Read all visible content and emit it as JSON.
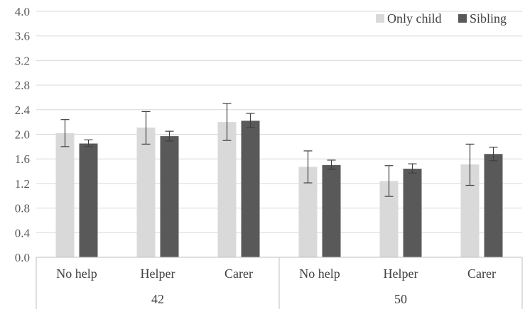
{
  "chart_data": {
    "type": "bar",
    "groups": [
      {
        "label": "42",
        "categories": [
          "No help",
          "Helper",
          "Carer"
        ]
      },
      {
        "label": "50",
        "categories": [
          "No help",
          "Helper",
          "Carer"
        ]
      }
    ],
    "categories": [
      "No help",
      "Helper",
      "Carer",
      "No help",
      "Helper",
      "Carer"
    ],
    "series": [
      {
        "name": "Only child",
        "color": "#d9d9d9",
        "values": [
          2.02,
          2.11,
          2.2,
          1.47,
          1.24,
          1.51
        ],
        "error_low": [
          1.8,
          1.84,
          1.9,
          1.21,
          0.99,
          1.17
        ],
        "error_high": [
          2.24,
          2.37,
          2.5,
          1.73,
          1.49,
          1.84
        ]
      },
      {
        "name": "Sibling",
        "color": "#595959",
        "values": [
          1.85,
          1.97,
          2.22,
          1.5,
          1.44,
          1.68
        ],
        "error_low": [
          1.8,
          1.89,
          2.11,
          1.43,
          1.37,
          1.57
        ],
        "error_high": [
          1.91,
          2.05,
          2.34,
          1.58,
          1.52,
          1.79
        ]
      }
    ],
    "title": "",
    "xlabel": "",
    "ylabel": "",
    "ylim": [
      0,
      4.0
    ],
    "yticks": [
      "0.0",
      "0.4",
      "0.8",
      "1.2",
      "1.6",
      "2.0",
      "2.4",
      "2.8",
      "3.2",
      "3.6",
      "4.0"
    ],
    "grid": true,
    "legend_position": "top-right"
  }
}
